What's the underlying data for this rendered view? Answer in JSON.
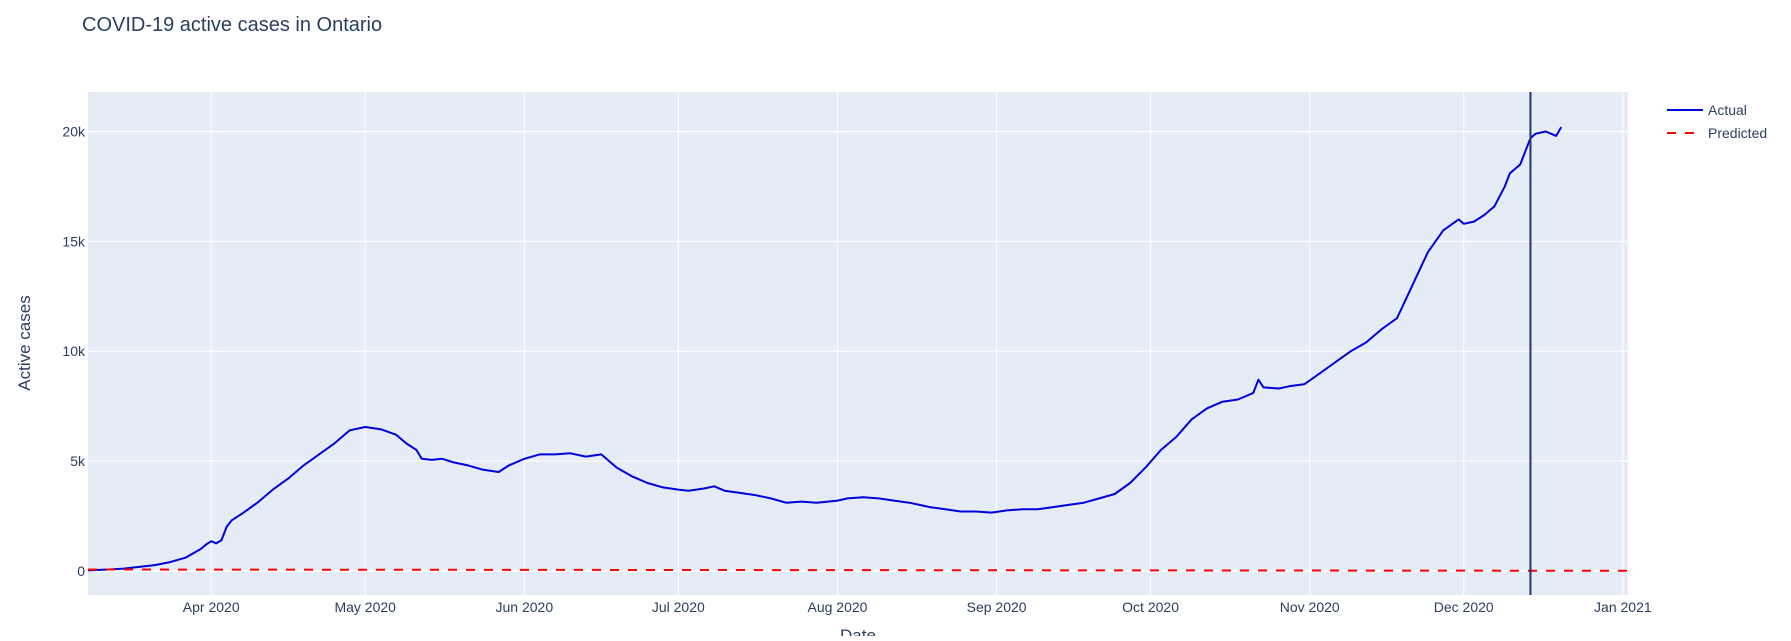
{
  "chart_data": {
    "type": "line",
    "title": "COVID-19 active cases in Ontario",
    "xlabel": "Date",
    "ylabel": "Active cases",
    "xlim": [
      "2020-03-08",
      "2021-01-02"
    ],
    "ylim": [
      -1100,
      21800
    ],
    "x_ticks": [
      {
        "date": "2020-04-01",
        "label": "Apr 2020"
      },
      {
        "date": "2020-05-01",
        "label": "May 2020"
      },
      {
        "date": "2020-06-01",
        "label": "Jun 2020"
      },
      {
        "date": "2020-07-01",
        "label": "Jul 2020"
      },
      {
        "date": "2020-08-01",
        "label": "Aug 2020"
      },
      {
        "date": "2020-09-01",
        "label": "Sep 2020"
      },
      {
        "date": "2020-10-01",
        "label": "Oct 2020"
      },
      {
        "date": "2020-11-01",
        "label": "Nov 2020"
      },
      {
        "date": "2020-12-01",
        "label": "Dec 2020"
      },
      {
        "date": "2021-01-01",
        "label": "Jan 2021"
      }
    ],
    "y_ticks": [
      {
        "value": 0,
        "label": "0"
      },
      {
        "value": 5000,
        "label": "5k"
      },
      {
        "value": 10000,
        "label": "10k"
      },
      {
        "value": 15000,
        "label": "15k"
      },
      {
        "value": 20000,
        "label": "20k"
      }
    ],
    "grid": true,
    "legend_position": "top-right",
    "vertical_line": {
      "date": "2020-12-14",
      "color": "#1f3a6e"
    },
    "series": [
      {
        "name": "Actual",
        "color": "#0000dd",
        "dash": "solid",
        "points": [
          [
            "2020-03-08",
            20
          ],
          [
            "2020-03-12",
            60
          ],
          [
            "2020-03-15",
            100
          ],
          [
            "2020-03-18",
            180
          ],
          [
            "2020-03-21",
            260
          ],
          [
            "2020-03-24",
            400
          ],
          [
            "2020-03-27",
            600
          ],
          [
            "2020-03-30",
            1000
          ],
          [
            "2020-03-31",
            1200
          ],
          [
            "2020-04-01",
            1350
          ],
          [
            "2020-04-02",
            1250
          ],
          [
            "2020-04-03",
            1400
          ],
          [
            "2020-04-04",
            2000
          ],
          [
            "2020-04-05",
            2300
          ],
          [
            "2020-04-07",
            2600
          ],
          [
            "2020-04-10",
            3100
          ],
          [
            "2020-04-13",
            3700
          ],
          [
            "2020-04-16",
            4200
          ],
          [
            "2020-04-19",
            4800
          ],
          [
            "2020-04-22",
            5300
          ],
          [
            "2020-04-25",
            5800
          ],
          [
            "2020-04-28",
            6400
          ],
          [
            "2020-05-01",
            6550
          ],
          [
            "2020-05-04",
            6450
          ],
          [
            "2020-05-07",
            6200
          ],
          [
            "2020-05-09",
            5800
          ],
          [
            "2020-05-11",
            5500
          ],
          [
            "2020-05-12",
            5100
          ],
          [
            "2020-05-14",
            5050
          ],
          [
            "2020-05-16",
            5100
          ],
          [
            "2020-05-18",
            4950
          ],
          [
            "2020-05-21",
            4800
          ],
          [
            "2020-05-24",
            4600
          ],
          [
            "2020-05-27",
            4500
          ],
          [
            "2020-05-29",
            4800
          ],
          [
            "2020-06-01",
            5100
          ],
          [
            "2020-06-04",
            5300
          ],
          [
            "2020-06-07",
            5300
          ],
          [
            "2020-06-10",
            5350
          ],
          [
            "2020-06-13",
            5200
          ],
          [
            "2020-06-16",
            5300
          ],
          [
            "2020-06-19",
            4700
          ],
          [
            "2020-06-22",
            4300
          ],
          [
            "2020-06-25",
            4000
          ],
          [
            "2020-06-28",
            3800
          ],
          [
            "2020-07-01",
            3700
          ],
          [
            "2020-07-03",
            3650
          ],
          [
            "2020-07-06",
            3750
          ],
          [
            "2020-07-08",
            3850
          ],
          [
            "2020-07-10",
            3650
          ],
          [
            "2020-07-13",
            3550
          ],
          [
            "2020-07-16",
            3450
          ],
          [
            "2020-07-19",
            3300
          ],
          [
            "2020-07-22",
            3100
          ],
          [
            "2020-07-25",
            3150
          ],
          [
            "2020-07-28",
            3100
          ],
          [
            "2020-08-01",
            3200
          ],
          [
            "2020-08-03",
            3300
          ],
          [
            "2020-08-06",
            3350
          ],
          [
            "2020-08-09",
            3300
          ],
          [
            "2020-08-12",
            3200
          ],
          [
            "2020-08-15",
            3100
          ],
          [
            "2020-08-17",
            3000
          ],
          [
            "2020-08-19",
            2900
          ],
          [
            "2020-08-22",
            2800
          ],
          [
            "2020-08-25",
            2700
          ],
          [
            "2020-08-28",
            2700
          ],
          [
            "2020-08-31",
            2650
          ],
          [
            "2020-09-03",
            2750
          ],
          [
            "2020-09-06",
            2800
          ],
          [
            "2020-09-09",
            2800
          ],
          [
            "2020-09-12",
            2900
          ],
          [
            "2020-09-15",
            3000
          ],
          [
            "2020-09-18",
            3100
          ],
          [
            "2020-09-21",
            3300
          ],
          [
            "2020-09-24",
            3500
          ],
          [
            "2020-09-27",
            4000
          ],
          [
            "2020-09-30",
            4700
          ],
          [
            "2020-10-03",
            5500
          ],
          [
            "2020-10-06",
            6100
          ],
          [
            "2020-10-09",
            6900
          ],
          [
            "2020-10-12",
            7400
          ],
          [
            "2020-10-15",
            7700
          ],
          [
            "2020-10-18",
            7800
          ],
          [
            "2020-10-21",
            8100
          ],
          [
            "2020-10-22",
            8700
          ],
          [
            "2020-10-23",
            8350
          ],
          [
            "2020-10-26",
            8300
          ],
          [
            "2020-10-28",
            8400
          ],
          [
            "2020-10-31",
            8500
          ],
          [
            "2020-11-03",
            9000
          ],
          [
            "2020-11-06",
            9500
          ],
          [
            "2020-11-09",
            10000
          ],
          [
            "2020-11-12",
            10400
          ],
          [
            "2020-11-15",
            11000
          ],
          [
            "2020-11-18",
            11500
          ],
          [
            "2020-11-21",
            13000
          ],
          [
            "2020-11-24",
            14500
          ],
          [
            "2020-11-27",
            15500
          ],
          [
            "2020-11-30",
            16000
          ],
          [
            "2020-12-01",
            15800
          ],
          [
            "2020-12-03",
            15900
          ],
          [
            "2020-12-05",
            16200
          ],
          [
            "2020-12-07",
            16600
          ],
          [
            "2020-12-09",
            17500
          ],
          [
            "2020-12-10",
            18100
          ],
          [
            "2020-12-11",
            18300
          ],
          [
            "2020-12-12",
            18500
          ],
          [
            "2020-12-13",
            19100
          ],
          [
            "2020-12-14",
            19700
          ],
          [
            "2020-12-15",
            19900
          ],
          [
            "2020-12-17",
            20000
          ],
          [
            "2020-12-19",
            19800
          ],
          [
            "2020-12-20",
            20200
          ]
        ]
      },
      {
        "name": "Predicted",
        "color": "#ff0000",
        "dash": "dash",
        "points": [
          [
            "2020-03-08",
            60
          ],
          [
            "2021-01-02",
            0
          ]
        ]
      }
    ]
  }
}
